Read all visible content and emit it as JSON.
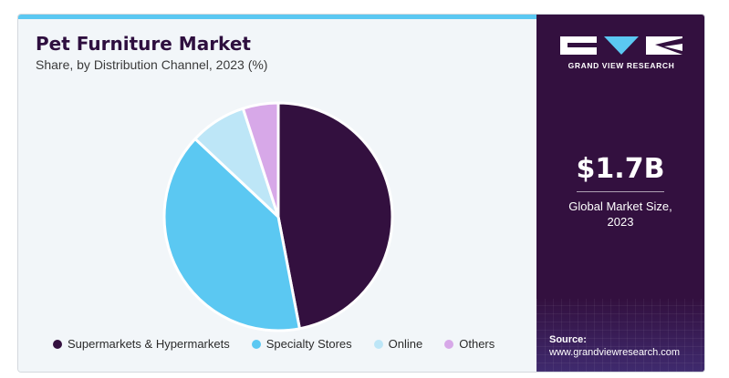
{
  "header": {
    "title": "Pet Furniture Market",
    "subtitle": "Share, by Distribution Channel, 2023 (%)"
  },
  "brand": {
    "name": "GRAND VIEW RESEARCH",
    "market_size": "$1.7B",
    "market_size_label_line1": "Global Market Size,",
    "market_size_label_line2": "2023"
  },
  "source": {
    "label": "Source:",
    "url": "www.grandviewresearch.com"
  },
  "colors": {
    "accent": "#5bc8f2",
    "panel": "#33103f"
  },
  "chart_data": {
    "type": "pie",
    "title": "Pet Furniture Market",
    "subtitle": "Share, by Distribution Channel, 2023 (%)",
    "legend_position": "bottom",
    "slices": [
      {
        "label": "Supermarkets & Hypermarkets",
        "value": 47,
        "color": "#33103f"
      },
      {
        "label": "Specialty Stores",
        "value": 40,
        "color": "#5bc8f2"
      },
      {
        "label": "Online",
        "value": 8,
        "color": "#bde6f7"
      },
      {
        "label": "Others",
        "value": 5,
        "color": "#d7a8e8"
      }
    ]
  }
}
